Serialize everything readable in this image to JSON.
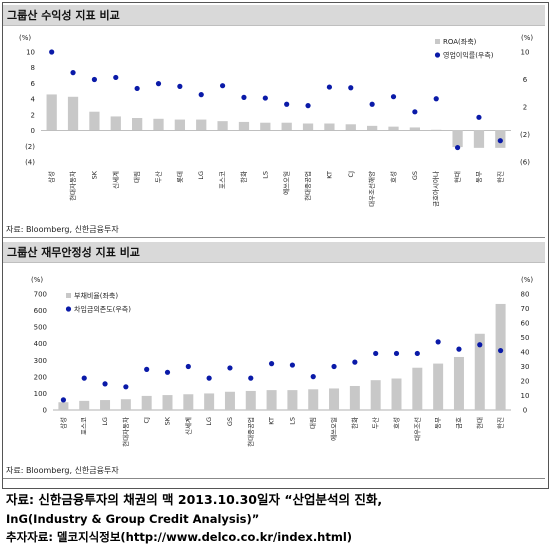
{
  "chart_data": [
    {
      "type": "bar",
      "title": "그룹산 수익성 지표 비교",
      "source": "자료: Bloomberg, 신한금융투자",
      "left_axis_unit": "(%)",
      "right_axis_unit": "(%)",
      "left_ylim": [
        -4,
        10
      ],
      "left_ticks": [
        "10",
        "8",
        "6",
        "4",
        "2",
        "0",
        "(2)",
        "(4)"
      ],
      "left_tick_values": [
        10,
        8,
        6,
        4,
        2,
        0,
        -2,
        -4
      ],
      "right_ylim": [
        -6,
        10
      ],
      "right_ticks": [
        "10",
        "6",
        "2",
        "(2)",
        "(6)"
      ],
      "right_tick_values": [
        10,
        6,
        2,
        -2,
        -6
      ],
      "categories": [
        "삼성",
        "현대자동차",
        "SK",
        "신세계",
        "대림",
        "두산",
        "롯데",
        "LG",
        "포스코",
        "한화",
        "LS",
        "에쓰오일",
        "현대중공업",
        "KT",
        "CJ",
        "대우조선해양",
        "효성",
        "GS",
        "금호아시아나",
        "현대",
        "동부",
        "한진"
      ],
      "series": [
        {
          "name": "ROA(좌축)",
          "kind": "bar",
          "color": "#c8c8c8",
          "values": [
            4.6,
            4.3,
            2.4,
            1.8,
            1.6,
            1.5,
            1.4,
            1.4,
            1.2,
            1.1,
            1.0,
            1.0,
            0.9,
            0.9,
            0.8,
            0.6,
            0.5,
            0.4,
            0.1,
            -2.1,
            -2.2,
            -2.2
          ]
        },
        {
          "name": "영업이익률(우측)",
          "kind": "dot",
          "color": "#0a1aa8",
          "values": [
            10.0,
            7.0,
            6.0,
            6.3,
            4.7,
            5.4,
            5.0,
            3.8,
            5.1,
            3.4,
            3.3,
            2.4,
            2.2,
            4.9,
            4.8,
            2.4,
            3.5,
            1.3,
            3.2,
            -3.9,
            0.5,
            -2.9
          ]
        }
      ]
    },
    {
      "type": "bar",
      "title": "그룹산 재무안정성 지표 비교",
      "source": "자료: Bloomberg, 신한금융투자",
      "left_axis_unit": "(%)",
      "right_axis_unit": "(%)",
      "left_ylim": [
        0,
        700
      ],
      "left_ticks": [
        "700",
        "600",
        "500",
        "400",
        "300",
        "200",
        "100",
        "0"
      ],
      "left_tick_values": [
        700,
        600,
        500,
        400,
        300,
        200,
        100,
        0
      ],
      "right_ylim": [
        0,
        80
      ],
      "right_ticks": [
        "80",
        "70",
        "60",
        "50",
        "40",
        "30",
        "20",
        "10",
        "0"
      ],
      "right_tick_values": [
        80,
        70,
        60,
        50,
        40,
        30,
        20,
        10,
        0
      ],
      "categories": [
        "삼성",
        "포스코",
        "LG",
        "현대자동차",
        "CJ",
        "SK",
        "신세계",
        "LG",
        "GS",
        "현대중공업",
        "KT",
        "LS",
        "대림",
        "에쓰오일",
        "한화",
        "두산",
        "효성",
        "대우조선",
        "동부",
        "금호",
        "현대",
        "한진"
      ],
      "series": [
        {
          "name": "부채비율(좌축)",
          "kind": "bar",
          "color": "#c8c8c8",
          "values": [
            47,
            55,
            60,
            65,
            85,
            90,
            95,
            100,
            110,
            115,
            120,
            120,
            125,
            130,
            145,
            180,
            190,
            255,
            280,
            320,
            460,
            640
          ]
        },
        {
          "name": "차입금의존도(우측)",
          "kind": "dot",
          "color": "#0a1aa8",
          "values": [
            7,
            22,
            18,
            16,
            28,
            26,
            30,
            22,
            29,
            22,
            32,
            31,
            23,
            30,
            33,
            39,
            39,
            39,
            47,
            42,
            45,
            41
          ]
        }
      ]
    }
  ],
  "caption": {
    "line1": "자료: 신한금융투자의 채권의 맥 2013.10.30일자 “산업분석의 진화,",
    "line2": "InG(Industry & Group Credit Analysis)”",
    "line3": "추자자료: 델코지식정보(http://www.delco.co.kr/index.html)"
  }
}
